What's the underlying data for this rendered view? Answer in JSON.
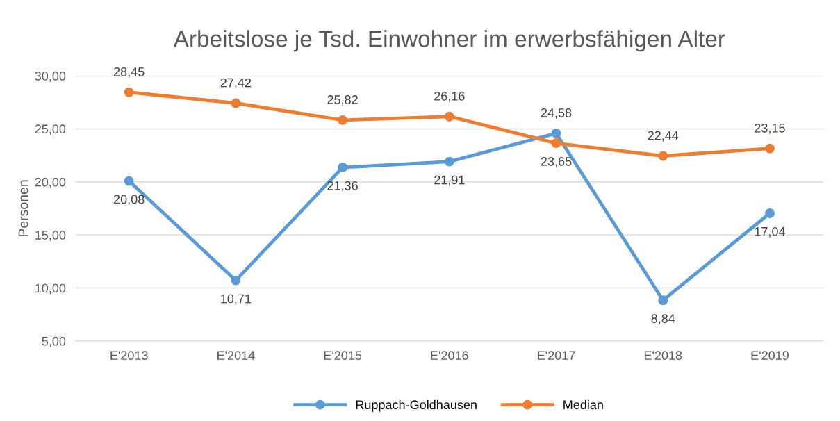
{
  "chart_data": {
    "type": "line",
    "title": "Arbeitslose je Tsd. Einwohner im erwerbsfähigen Alter",
    "ylabel": "Personen",
    "categories": [
      "E'2013",
      "E'2014",
      "E'2015",
      "E'2016",
      "E'2017",
      "E'2018",
      "E'2019"
    ],
    "series": [
      {
        "name": "Ruppach-Goldhausen",
        "color": "#5b9bd5",
        "values": [
          20.08,
          10.71,
          21.36,
          21.91,
          24.58,
          8.84,
          17.04
        ],
        "value_labels": [
          "20,08",
          "10,71",
          "21,36",
          "21,91",
          "24,58",
          "8,84",
          "17,04"
        ]
      },
      {
        "name": "Median",
        "color": "#ed7d31",
        "values": [
          28.45,
          27.42,
          25.82,
          26.16,
          23.65,
          22.44,
          23.15
        ],
        "value_labels": [
          "28,45",
          "27,42",
          "25,82",
          "26,16",
          "23,65",
          "22,44",
          "23,15"
        ]
      }
    ],
    "ylim": [
      5,
      30
    ],
    "yticks": [
      {
        "value": 5,
        "label": "5,00"
      },
      {
        "value": 10,
        "label": "10,00"
      },
      {
        "value": 15,
        "label": "15,00"
      },
      {
        "value": 20,
        "label": "20,00"
      },
      {
        "value": 25,
        "label": "25,00"
      },
      {
        "value": 30,
        "label": "30,00"
      }
    ],
    "grid": "y",
    "legend": "bottom",
    "marker": "circle",
    "line_style": "solid"
  }
}
